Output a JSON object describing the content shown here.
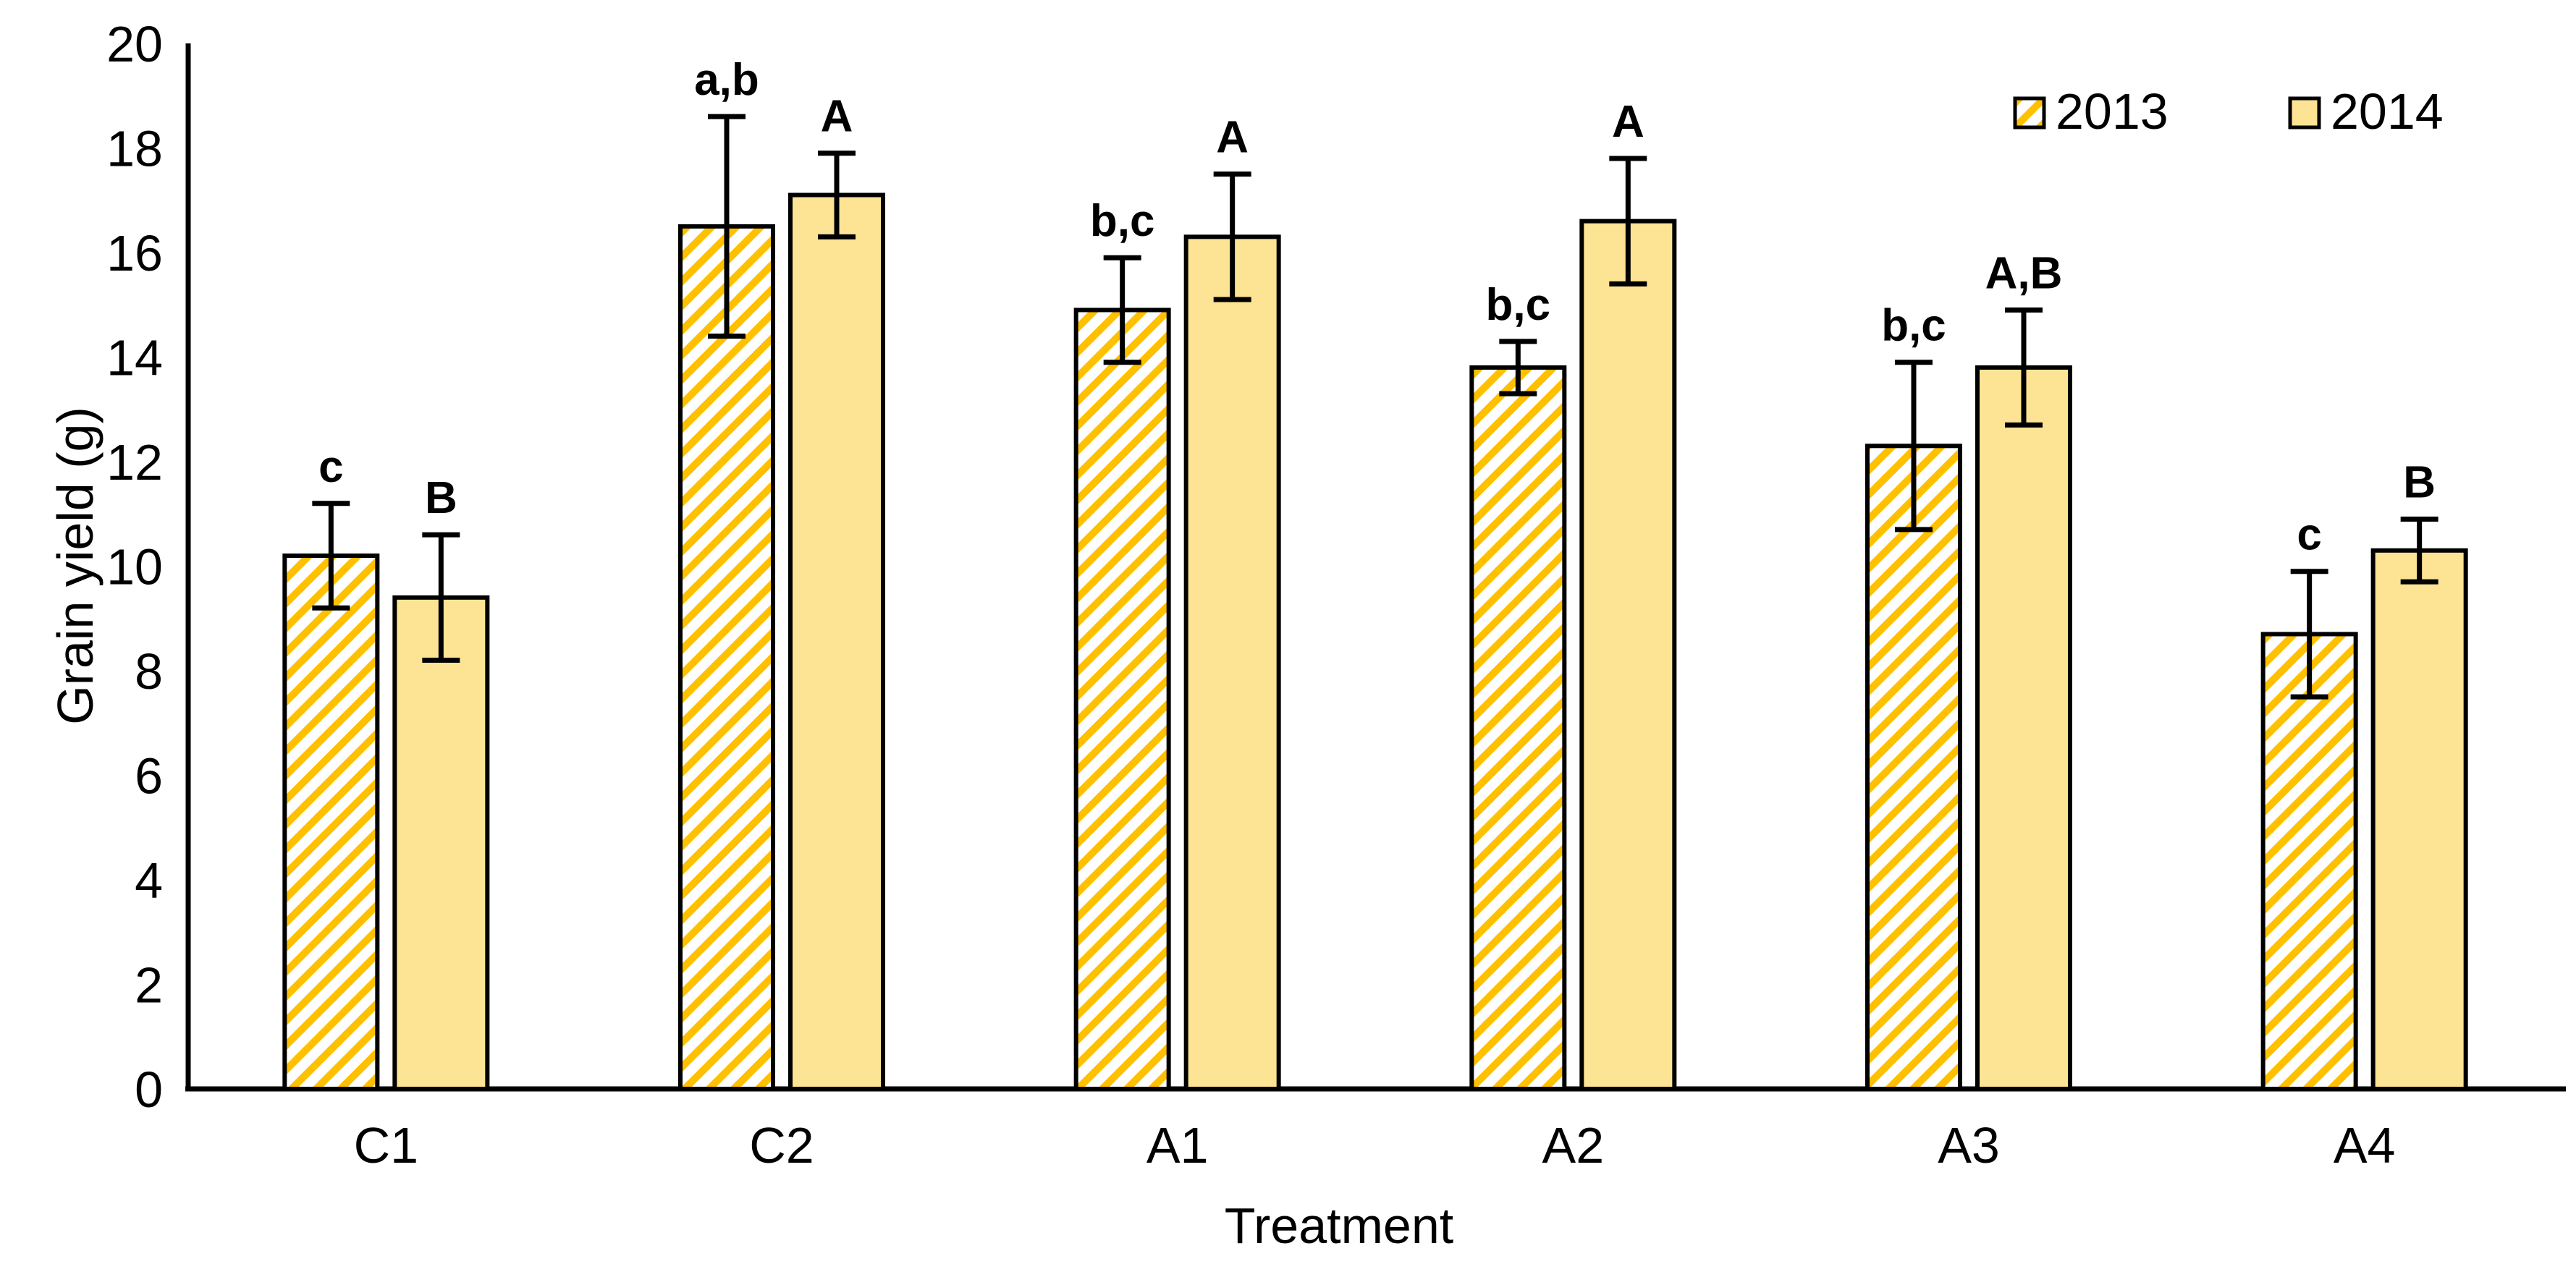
{
  "figure": {
    "background": "#FFFFFF"
  },
  "chart_data": {
    "type": "bar",
    "title": "",
    "xlabel": "Treatment",
    "ylabel": "Grain yield (g)",
    "categories": [
      "C1",
      "C2",
      "A1",
      "A2",
      "A3",
      "A4"
    ],
    "series": [
      {
        "name": "2013",
        "style": "hatched",
        "values": [
          10.2,
          16.5,
          14.9,
          13.8,
          12.3,
          8.7
        ],
        "errors": [
          1.0,
          2.1,
          1.0,
          0.5,
          1.6,
          1.2
        ],
        "letters": [
          "c",
          "a,b",
          "b,c",
          "b,c",
          "b,c",
          "c"
        ]
      },
      {
        "name": "2014",
        "style": "solid",
        "values": [
          9.4,
          17.1,
          16.3,
          16.6,
          13.8,
          10.3
        ],
        "errors": [
          1.2,
          0.8,
          1.2,
          1.2,
          1.1,
          0.6
        ],
        "letters": [
          "B",
          "A",
          "A",
          "A",
          "A,B",
          "B"
        ]
      }
    ],
    "ylim": [
      0,
      20
    ],
    "yticks": [
      0,
      2,
      4,
      6,
      8,
      10,
      12,
      14,
      16,
      18,
      20
    ],
    "grid": false,
    "legend_position": "top-right",
    "colors": {
      "hatch_stripe": "#FFC000",
      "hatch_background": "#FFFFFF",
      "solid_fill": "#FDE394",
      "bar_border": "#000000",
      "axis": "#000000",
      "text": "#000000"
    }
  }
}
